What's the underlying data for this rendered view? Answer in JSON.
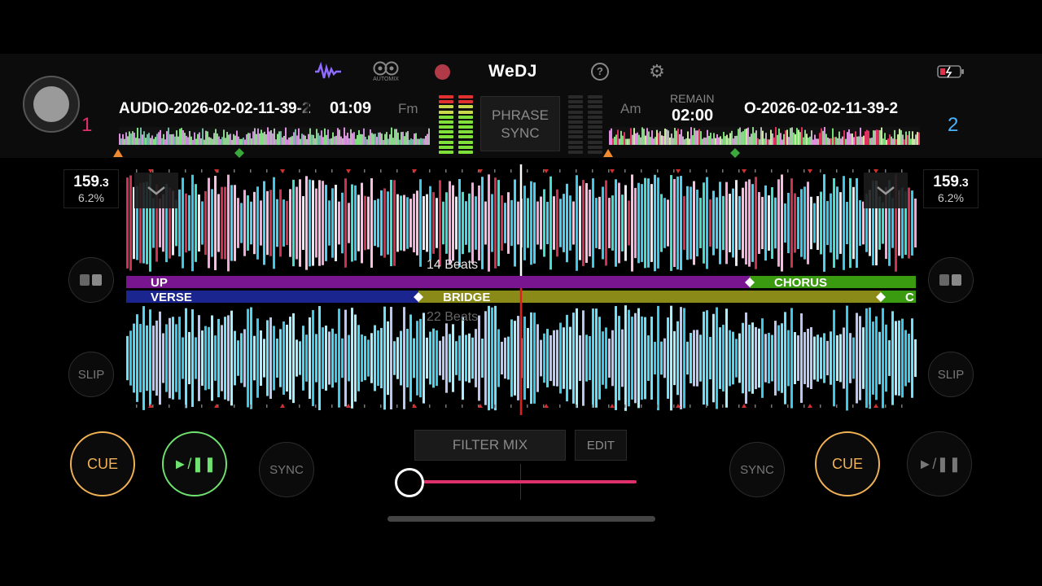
{
  "app": {
    "title": "WeDJ"
  },
  "toolbar": {
    "automix_label": "AUTOMIX",
    "icons": [
      "waveform-icon",
      "automix-icon",
      "record-icon",
      "help-icon",
      "gear-icon",
      "battery-icon"
    ],
    "accent_color": "#8f6cff",
    "record_color": "#b03a48"
  },
  "deck1": {
    "number": "1",
    "number_color": "#e0306a",
    "title": "AUDIO-2026-02-02-11-39-2",
    "elapsed": "01:09",
    "key": "Fm",
    "bpm": "159",
    "bpm_decimal": ".3",
    "pitch": "6.2%",
    "cue_label": "CUE",
    "play_label": "►/❚❚",
    "sync_label": "SYNC",
    "slip_label": "SLIP"
  },
  "deck2": {
    "number": "2",
    "number_color": "#4ab3ff",
    "title": "O-2026-02-02-11-39-2",
    "remain_label": "REMAIN",
    "remain": "02:00",
    "key": "Am",
    "bpm": "159",
    "bpm_decimal": ".3",
    "pitch": "6.2%",
    "cue_label": "CUE",
    "play_label": "►/❚❚",
    "sync_label": "SYNC",
    "slip_label": "SLIP"
  },
  "center": {
    "phrase_line1": "PHRASE",
    "phrase_line2": "SYNC",
    "filter_mix_label": "FILTER MIX",
    "edit_label": "EDIT",
    "crossfader_position": 0.0
  },
  "waveform": {
    "upper_beats_label": "14 Beats",
    "lower_beats_label": "22 Beats",
    "phrases_top": [
      {
        "label": "UP",
        "color": "#7a1590"
      },
      {
        "label": "CHORUS",
        "color": "#3a9a10"
      }
    ],
    "phrases_bottom": [
      {
        "label": "VERSE",
        "color": "#1a2590"
      },
      {
        "label": "BRIDGE",
        "color": "#8a8a18"
      },
      {
        "label": "C",
        "color": "#3a9a10"
      }
    ]
  }
}
